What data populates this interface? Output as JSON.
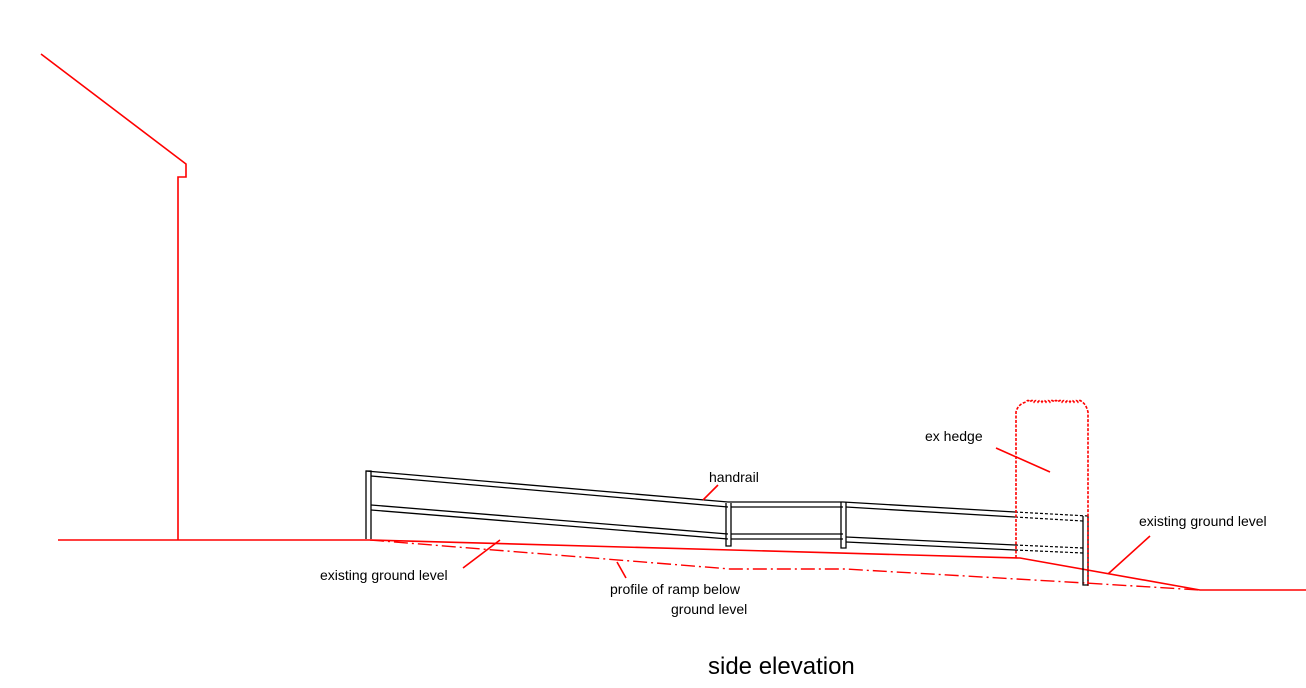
{
  "labels": {
    "handrail": "handrail",
    "ex_hedge": "ex hedge",
    "existing_ground_level_left": "existing ground level",
    "existing_ground_level_right": "existing ground level",
    "ramp_profile_line1": "profile of ramp below",
    "ramp_profile_line2": "ground level"
  },
  "title": "side elevation",
  "colors": {
    "annotation_lines": "#ff0000",
    "handrail": "#000000",
    "text": "#000000",
    "background": "#ffffff"
  }
}
